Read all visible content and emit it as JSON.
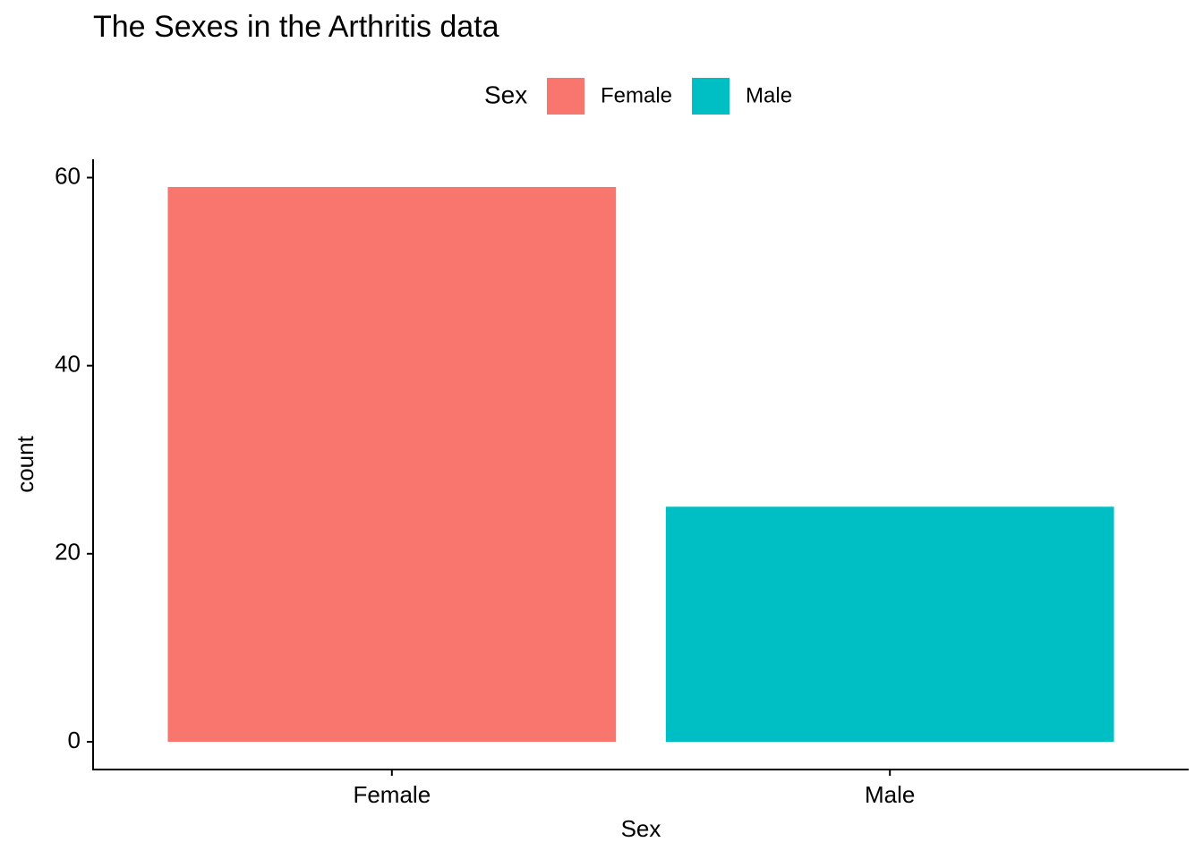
{
  "chart_data": {
    "type": "bar",
    "title": "The Sexes in the Arthritis data",
    "x_label": "Sex",
    "y_label": "count",
    "legend": {
      "title": "Sex",
      "position": "top"
    },
    "categories": [
      "Female",
      "Male"
    ],
    "values": [
      59,
      25
    ],
    "colors": [
      "#f8766d",
      "#00bfc4"
    ],
    "ylim": [
      -2.95,
      61.95
    ],
    "yticks": [
      0,
      20,
      40,
      60
    ],
    "grid": false
  }
}
